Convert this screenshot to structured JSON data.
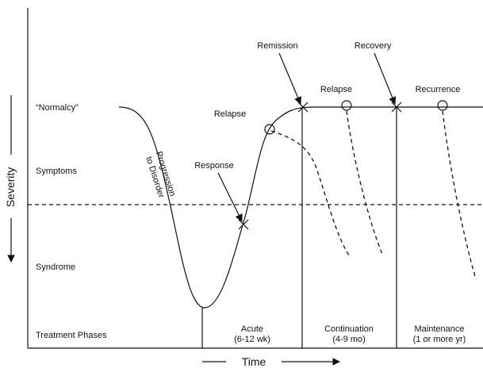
{
  "levels": [
    "“Normalcy”",
    "Symptoms",
    "Syndrome",
    "Treatment Phases"
  ],
  "y_axis": "Severity",
  "x_axis": "Time",
  "progression": [
    "Progression",
    "to Disorder"
  ],
  "events": {
    "response": "Response",
    "relapse_acute": "Relapse",
    "remission": "Remission",
    "relapse_continuation": "Relapse",
    "recovery": "Recovery",
    "recurrence": "Recurrence"
  },
  "phases": [
    {
      "name": "Acute",
      "duration": "(6-12 wk)"
    },
    {
      "name": "Continuation",
      "duration": "(4-9 mo)"
    },
    {
      "name": "Maintenance",
      "duration": "(1 or more yr)"
    }
  ]
}
